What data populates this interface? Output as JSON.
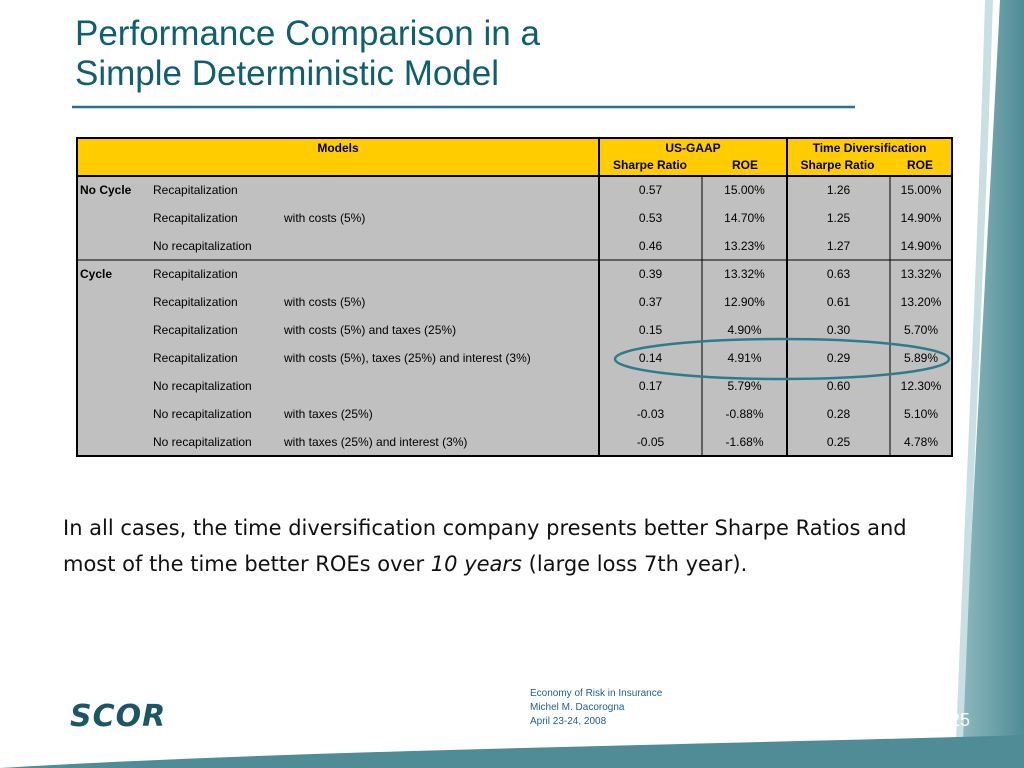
{
  "title": [
    "Performance Comparison in a",
    "Simple Deterministic Model"
  ],
  "table": {
    "header": {
      "models": "Models",
      "groups": [
        {
          "name": "US-GAAP",
          "columns": [
            "Sharpe Ratio",
            "ROE"
          ]
        },
        {
          "name": "Time Diversification",
          "columns": [
            "Sharpe Ratio",
            "ROE"
          ]
        }
      ]
    },
    "groups": [
      {
        "label": "No Cycle",
        "rows": [
          {
            "model": "Recapitalization",
            "values": [
              "0.57",
              "15.00%",
              "1.26",
              "15.00%"
            ]
          },
          {
            "model": "Recapitalization",
            "detail": "with costs (5%)",
            "values": [
              "0.53",
              "14.70%",
              "1.25",
              "14.90%"
            ]
          },
          {
            "model": "No recapitalization",
            "values": [
              "0.46",
              "13.23%",
              "1.27",
              "14.90%"
            ]
          }
        ]
      },
      {
        "label": "Cycle",
        "rows": [
          {
            "model": "Recapitalization",
            "values": [
              "0.39",
              "13.32%",
              "0.63",
              "13.32%"
            ]
          },
          {
            "model": "Recapitalization",
            "detail": "with costs (5%)",
            "values": [
              "0.37",
              "12.90%",
              "0.61",
              "13.20%"
            ]
          },
          {
            "model": "Recapitalization",
            "detail": "with costs (5%) and taxes (25%)",
            "values": [
              "0.15",
              "4.90%",
              "0.30",
              "5.70%"
            ]
          },
          {
            "model": "Recapitalization",
            "detail": "with costs (5%), taxes (25%) and interest (3%)",
            "values": [
              "0.14",
              "4.91%",
              "0.29",
              "5.89%"
            ]
          },
          {
            "model": "No recapitalization",
            "values": [
              "0.17",
              "5.79%",
              "0.60",
              "12.30%"
            ]
          },
          {
            "model": "No recapitalization",
            "detail": "with taxes (25%)",
            "values": [
              "-0.03",
              "-0.88%",
              "0.28",
              "5.10%"
            ]
          },
          {
            "model": "No recapitalization",
            "detail": "with taxes (25%) and interest (3%)",
            "values": [
              "-0.05",
              "-1.68%",
              "0.25",
              "4.78%"
            ]
          }
        ]
      }
    ]
  },
  "body": [
    "In all cases, the time diversification company presents better Sharpe Ratios and most of the time better ROEs over ",
    "10 years",
    " (large loss 7th year)."
  ],
  "footer": [
    "Economy of Risk in Insurance",
    "Michel M. Dacorogna",
    "April 23-24, 2008"
  ],
  "page_number": "25",
  "logo": "SCOR"
}
